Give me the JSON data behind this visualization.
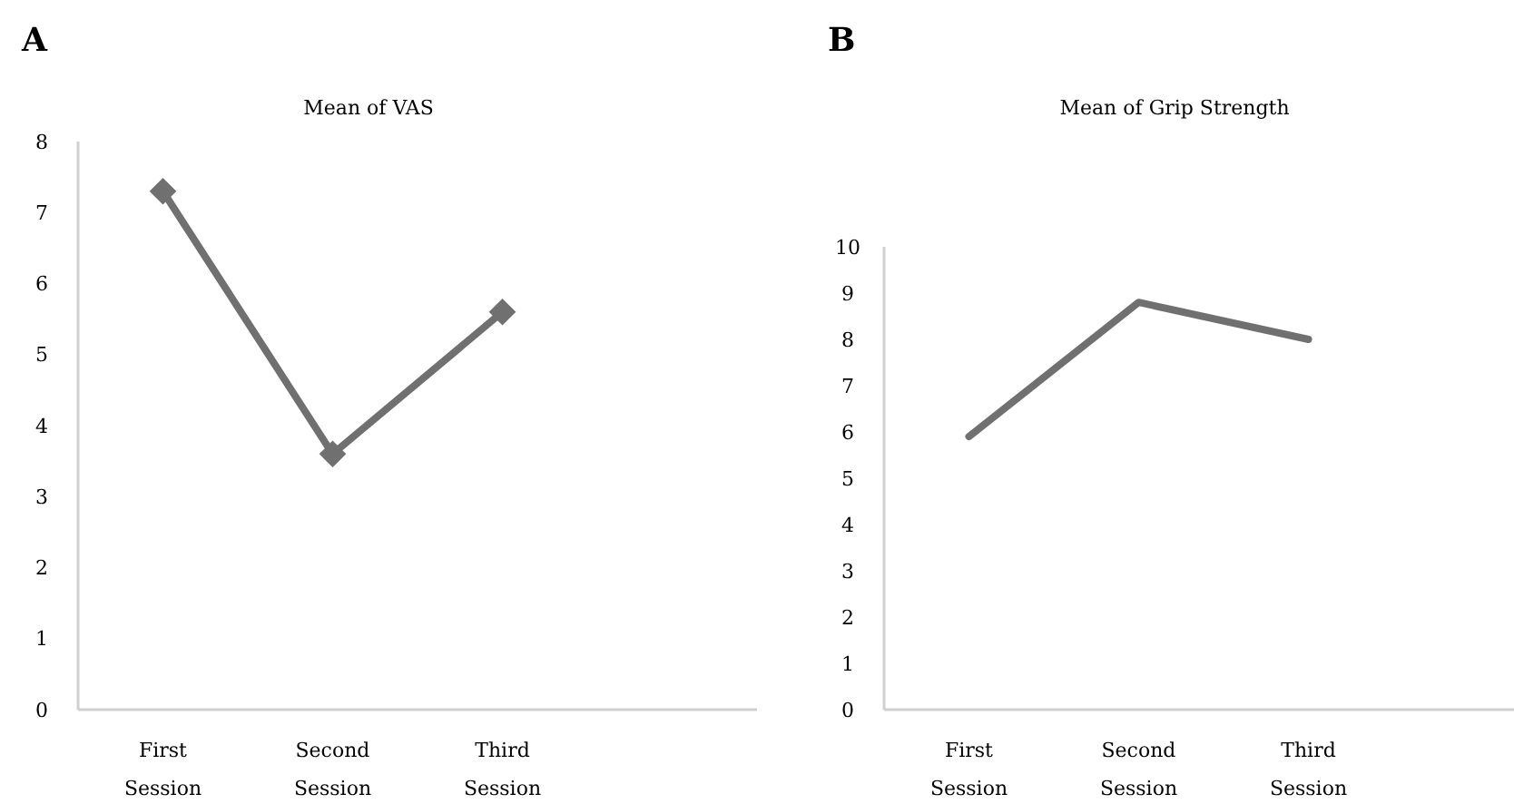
{
  "chart_data": [
    {
      "type": "line",
      "title": "Mean of VAS",
      "annotations": [
        "A"
      ],
      "categories": [
        "First Session",
        "Second Session",
        "Third Session",
        null
      ],
      "series": [
        {
          "color": "#707070",
          "values": [
            7.3,
            3.6,
            5.6,
            null
          ]
        }
      ],
      "ylim": [
        0,
        8
      ],
      "yticks": [
        0,
        1,
        2,
        3,
        4,
        5,
        6,
        7,
        8
      ],
      "grid": false,
      "marker": "diamond",
      "line_style": "solid"
    },
    {
      "type": "line",
      "title": "Mean of Grip Strength",
      "annotations": [
        "B"
      ],
      "categories": [
        "First Session",
        "Second Session",
        "Third Session",
        null
      ],
      "series": [
        {
          "color": "#707070",
          "values": [
            5.9,
            8.8,
            8.0,
            null
          ]
        }
      ],
      "ylim": [
        0,
        10
      ],
      "yticks": [
        0,
        1,
        2,
        3,
        4,
        5,
        6,
        7,
        8,
        9,
        10
      ],
      "grid": false,
      "marker": "none",
      "line_style": "solid"
    }
  ]
}
